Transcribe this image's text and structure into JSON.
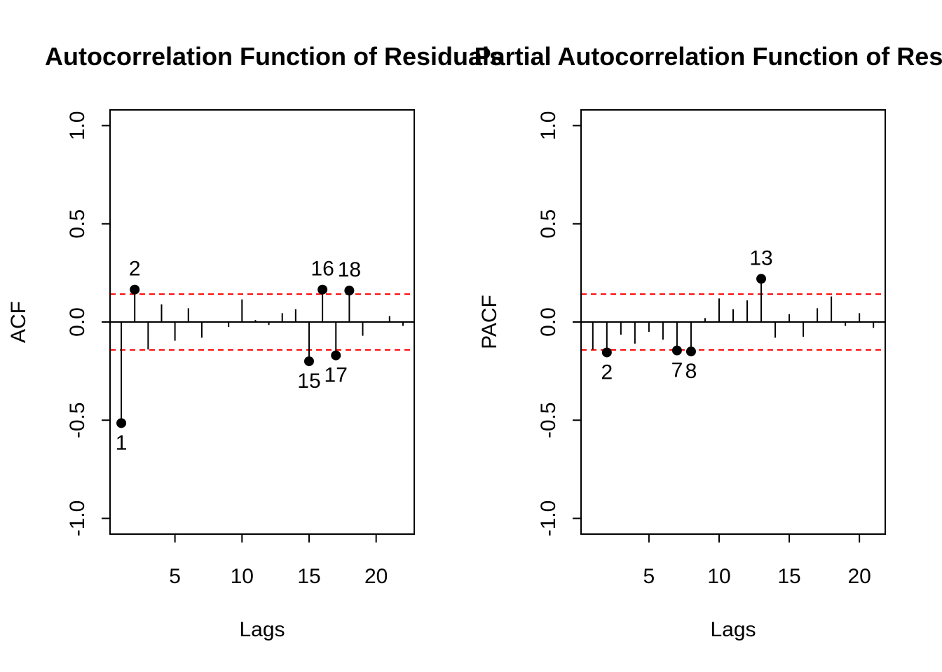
{
  "colors": {
    "bars": "#000000",
    "points": "#000000",
    "bounds": "#ff0000",
    "background": "#ffffff"
  },
  "chart_data": [
    {
      "type": "bar",
      "title": "Autocorrelation Function of Residuals",
      "xlabel": "Lags",
      "ylabel": "ACF",
      "xlim": [
        0.16,
        22.84
      ],
      "ylim": [
        -1.08,
        1.08
      ],
      "xticks": [
        5,
        10,
        15,
        20
      ],
      "yticks": [
        -1.0,
        -0.5,
        0.0,
        0.5,
        1.0
      ],
      "xtick_labels": [
        "5",
        "10",
        "15",
        "20"
      ],
      "ytick_labels": [
        "-1.0",
        "-0.5",
        "0.0",
        "0.5",
        "1.0"
      ],
      "confidence_bound": 0.142,
      "grid": false,
      "lags": [
        1,
        2,
        3,
        4,
        5,
        6,
        7,
        8,
        9,
        10,
        11,
        12,
        13,
        14,
        15,
        16,
        17,
        18,
        19,
        20,
        21,
        22
      ],
      "values": [
        -0.515,
        0.165,
        -0.14,
        0.09,
        -0.095,
        0.07,
        -0.08,
        0.0,
        -0.025,
        0.115,
        0.01,
        -0.015,
        0.045,
        0.065,
        -0.2,
        0.165,
        -0.17,
        0.16,
        -0.07,
        0.0,
        0.03,
        -0.02
      ],
      "highlighted": [
        {
          "lag": 1,
          "label": "1"
        },
        {
          "lag": 2,
          "label": "2"
        },
        {
          "lag": 15,
          "label": "15"
        },
        {
          "lag": 16,
          "label": "16"
        },
        {
          "lag": 17,
          "label": "17"
        },
        {
          "lag": 18,
          "label": "18"
        }
      ]
    },
    {
      "type": "bar",
      "title": "Partial Autocorrelation Function of Residuals",
      "xlabel": "Lags",
      "ylabel": "PACF",
      "xlim": [
        0.16,
        21.84
      ],
      "ylim": [
        -1.08,
        1.08
      ],
      "xticks": [
        5,
        10,
        15,
        20
      ],
      "yticks": [
        -1.0,
        -0.5,
        0.0,
        0.5,
        1.0
      ],
      "xtick_labels": [
        "5",
        "10",
        "15",
        "20"
      ],
      "ytick_labels": [
        "-1.0",
        "-0.5",
        "0.0",
        "0.5",
        "1.0"
      ],
      "confidence_bound": 0.142,
      "grid": false,
      "lags": [
        1,
        2,
        3,
        4,
        5,
        6,
        7,
        8,
        9,
        10,
        11,
        12,
        13,
        14,
        15,
        16,
        17,
        18,
        19,
        20,
        21
      ],
      "values": [
        -0.14,
        -0.155,
        -0.065,
        -0.11,
        -0.05,
        -0.09,
        -0.145,
        -0.15,
        0.02,
        0.12,
        0.065,
        0.11,
        0.22,
        -0.08,
        0.04,
        -0.075,
        0.07,
        0.13,
        -0.02,
        0.045,
        -0.03
      ],
      "highlighted": [
        {
          "lag": 2,
          "label": "2"
        },
        {
          "lag": 7,
          "label": "7"
        },
        {
          "lag": 8,
          "label": "8"
        },
        {
          "lag": 13,
          "label": "13"
        }
      ]
    }
  ]
}
